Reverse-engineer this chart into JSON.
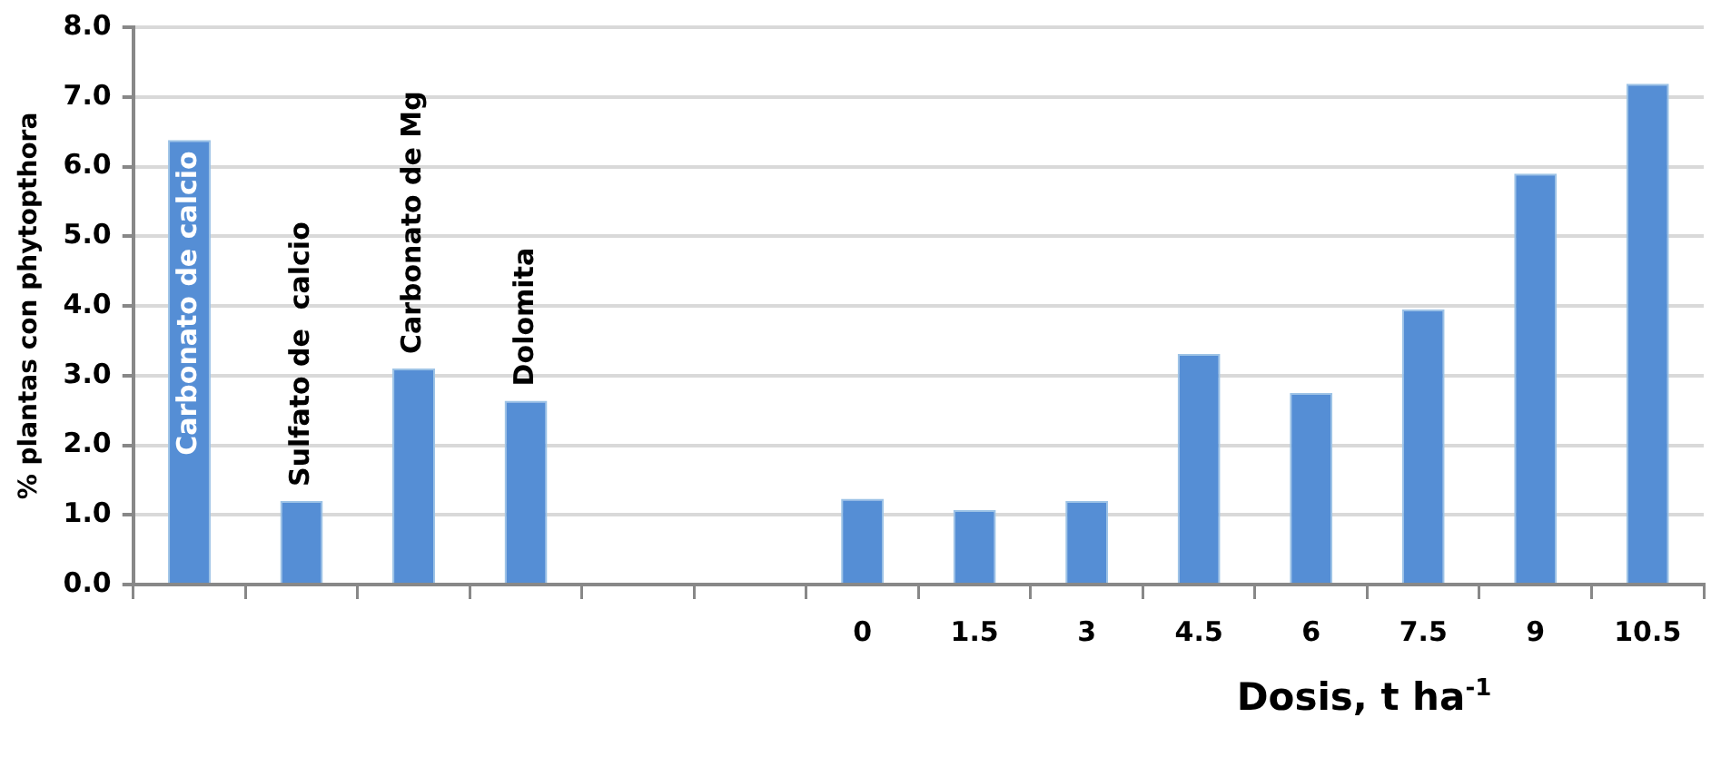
{
  "chart_data": {
    "type": "bar",
    "xlabel": "Dosis, t ha$^{-1}$",
    "ylabel": "% plantas con phytopthora",
    "categories": [
      null,
      null,
      null,
      null,
      null,
      null,
      "0",
      "1.5",
      "3",
      "4.5",
      "6",
      "7.5",
      "9",
      "10.5"
    ],
    "values": [
      6.38,
      1.2,
      3.1,
      2.64,
      null,
      null,
      1.23,
      1.07,
      1.2,
      3.31,
      2.75,
      3.95,
      5.9,
      7.19
    ],
    "color": "#558ed5",
    "ylim": [
      0,
      8
    ],
    "yticks": [
      {
        "value": 0,
        "label": "0.0"
      },
      {
        "value": 1,
        "label": "1.0"
      },
      {
        "value": 2,
        "label": "2.0"
      },
      {
        "value": 3,
        "label": "3.0"
      },
      {
        "value": 4,
        "label": "4.0"
      },
      {
        "value": 5,
        "label": "5.0"
      },
      {
        "value": 6,
        "label": "6.0"
      },
      {
        "value": 7,
        "label": "7.0"
      },
      {
        "value": 8,
        "label": "8.0"
      }
    ],
    "grid": "y",
    "annotations": [
      {
        "text": "Carbonato de calcio",
        "y": 6.38
      },
      {
        "text": "Sulfato de  calcio",
        "y": 1.2
      },
      {
        "text": "Carbonato de Mg",
        "y": 3.1
      },
      {
        "text": "Dolomita",
        "y": 2.64
      }
    ]
  }
}
